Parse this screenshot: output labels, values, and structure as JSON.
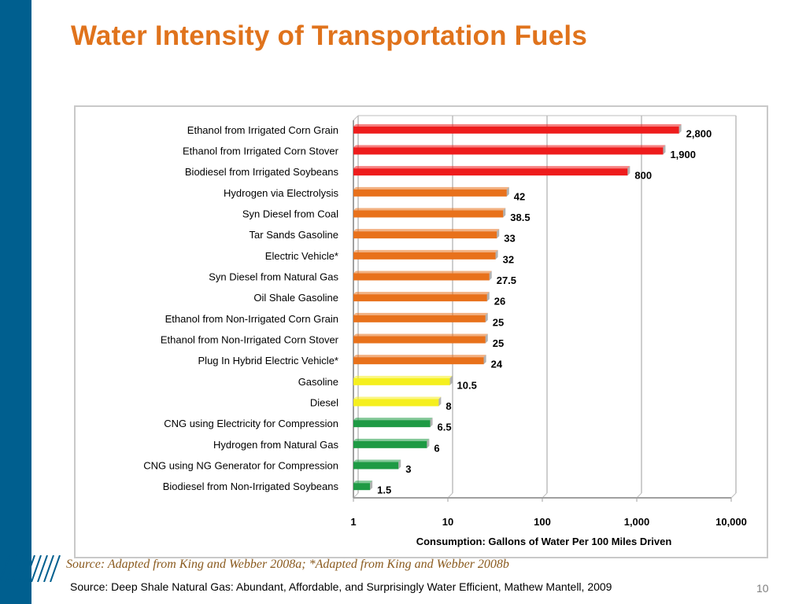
{
  "slide": {
    "title": "Water Intensity of Transportation Fuels",
    "chart_source_note": "Source: Adapted from King and Webber 2008a; *Adapted from King and Webber 2008b",
    "footer_source": "Source: Deep Shale Natural Gas: Abundant, Affordable, and Surprisingly Water Efficient, Mathew Mantell, 2009",
    "page_number": "10",
    "colors": {
      "left_bar": "#005f8f",
      "title": "#e0731c"
    }
  },
  "chart_data": {
    "type": "bar",
    "orientation": "horizontal",
    "x_scale": "log",
    "xlim": [
      1,
      10000
    ],
    "xticks": [
      "1",
      "10",
      "100",
      "1,000",
      "10,000"
    ],
    "xlabel": "Consumption: Gallons of Water Per 100 Miles Driven",
    "grid": true,
    "categories": [
      "Ethanol from Irrigated Corn Grain",
      "Ethanol from Irrigated Corn Stover",
      "Biodiesel from Irrigated Soybeans",
      "Hydrogen via Electrolysis",
      "Syn Diesel from Coal",
      "Tar Sands Gasoline",
      "Electric Vehicle*",
      "Syn Diesel from Natural Gas",
      "Oil Shale Gasoline",
      "Ethanol from Non-Irrigated Corn Grain",
      "Ethanol from Non-Irrigated Corn Stover",
      "Plug In Hybrid Electric Vehicle*",
      "Gasoline",
      "Diesel",
      "CNG using Electricity for Compression",
      "Hydrogen from Natural Gas",
      "CNG using NG Generator for Compression",
      "Biodiesel from Non-Irrigated Soybeans"
    ],
    "values": [
      2800,
      1900,
      800,
      42,
      38.5,
      33,
      32,
      27.5,
      26,
      25,
      25,
      24,
      10.5,
      8,
      6.5,
      6,
      3,
      1.5
    ],
    "value_labels": [
      "2,800",
      "1,900",
      "800",
      "42",
      "38.5",
      "33",
      "32",
      "27.5",
      "26",
      "25",
      "25",
      "24",
      "10.5",
      "8",
      "6.5",
      "6",
      "3",
      "1.5"
    ],
    "bar_colors": [
      "#ee1c1c",
      "#ee1c1c",
      "#ee1c1c",
      "#e8711b",
      "#e8711b",
      "#e8711b",
      "#e8711b",
      "#e8711b",
      "#e8711b",
      "#e8711b",
      "#e8711b",
      "#e8711b",
      "#f5ef1e",
      "#f5ef1e",
      "#1e9a44",
      "#1e9a44",
      "#1e9a44",
      "#1e9a44"
    ]
  }
}
